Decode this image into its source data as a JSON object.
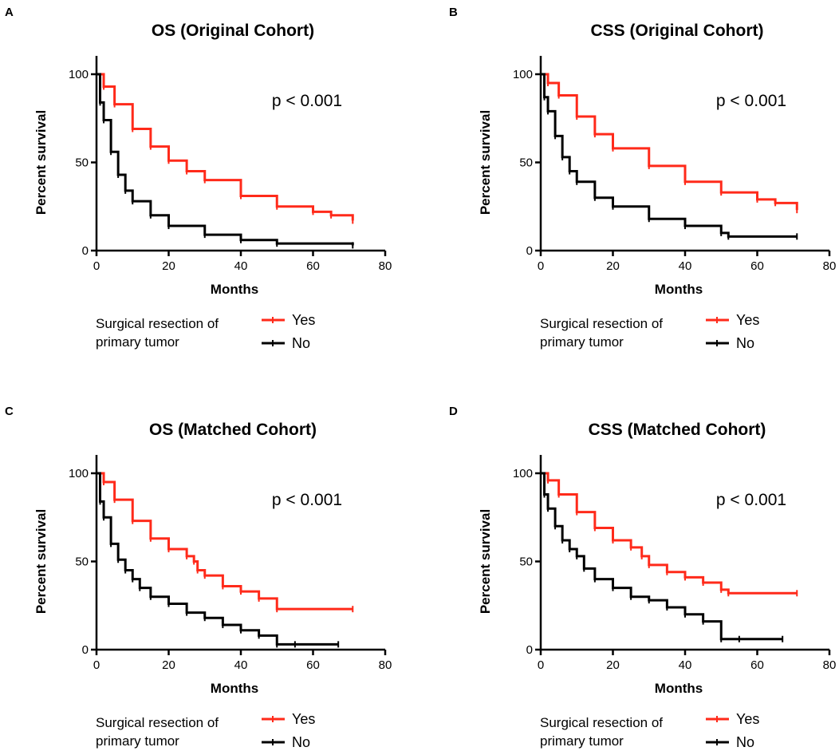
{
  "colors": {
    "yes": "#ff2a1a",
    "no": "#000000",
    "axis": "#000000"
  },
  "chart_data": [
    {
      "panel": "A",
      "type": "line",
      "subtype": "kaplan-meier",
      "title": "OS (Original Cohort)",
      "xlabel": "Months",
      "ylabel": "Percent survival",
      "xlim": [
        0,
        80
      ],
      "ylim": [
        0,
        100
      ],
      "xticks": [
        "0",
        "20",
        "40",
        "60",
        "80"
      ],
      "yticks": [
        "0",
        "50",
        "100"
      ],
      "annotation": "p < 0.001",
      "legend": {
        "title_line1": "Surgical resection of",
        "title_line2": "primary tumor",
        "yes_label": "Yes",
        "no_label": "No"
      },
      "series": [
        {
          "name": "Yes",
          "x": [
            0,
            2,
            5,
            10,
            15,
            20,
            25,
            30,
            40,
            50,
            60,
            65,
            71
          ],
          "y": [
            100,
            93,
            83,
            69,
            59,
            51,
            45,
            40,
            31,
            25,
            22,
            20,
            17
          ]
        },
        {
          "name": "No",
          "x": [
            0,
            1,
            2,
            4,
            6,
            8,
            10,
            15,
            20,
            30,
            40,
            50,
            71
          ],
          "y": [
            100,
            84,
            74,
            56,
            43,
            34,
            28,
            20,
            14,
            9,
            6,
            4,
            3
          ]
        }
      ]
    },
    {
      "panel": "B",
      "type": "line",
      "subtype": "kaplan-meier",
      "title": "CSS (Original Cohort)",
      "xlabel": "Months",
      "ylabel": "Percent survival",
      "xlim": [
        0,
        80
      ],
      "ylim": [
        0,
        100
      ],
      "xticks": [
        "0",
        "20",
        "40",
        "60",
        "80"
      ],
      "yticks": [
        "0",
        "50",
        "100"
      ],
      "annotation": "p < 0.001",
      "legend": {
        "title_line1": "Surgical resection of",
        "title_line2": "primary tumor",
        "yes_label": "Yes",
        "no_label": "No"
      },
      "series": [
        {
          "name": "Yes",
          "x": [
            0,
            2,
            5,
            10,
            15,
            20,
            30,
            40,
            50,
            60,
            65,
            71
          ],
          "y": [
            100,
            95,
            88,
            76,
            66,
            58,
            48,
            39,
            33,
            29,
            27,
            23
          ]
        },
        {
          "name": "No",
          "x": [
            0,
            1,
            2,
            4,
            6,
            8,
            10,
            15,
            20,
            30,
            40,
            50,
            52,
            71
          ],
          "y": [
            100,
            87,
            79,
            65,
            53,
            45,
            39,
            30,
            25,
            18,
            14,
            10,
            8,
            8
          ]
        }
      ]
    },
    {
      "panel": "C",
      "type": "line",
      "subtype": "kaplan-meier",
      "title": "OS (Matched Cohort)",
      "xlabel": "Months",
      "ylabel": "Percent survival",
      "xlim": [
        0,
        80
      ],
      "ylim": [
        0,
        100
      ],
      "xticks": [
        "0",
        "20",
        "40",
        "60",
        "80"
      ],
      "yticks": [
        "0",
        "50",
        "100"
      ],
      "annotation": "p < 0.001",
      "legend": {
        "title_line1": "Surgical resection of",
        "title_line2": "primary tumor",
        "yes_label": "Yes",
        "no_label": "No"
      },
      "series": [
        {
          "name": "Yes",
          "x": [
            0,
            2,
            5,
            10,
            15,
            20,
            25,
            27,
            28,
            30,
            35,
            40,
            45,
            50,
            71
          ],
          "y": [
            100,
            95,
            85,
            73,
            63,
            57,
            53,
            50,
            45,
            42,
            36,
            33,
            29,
            23,
            23
          ]
        },
        {
          "name": "No",
          "x": [
            0,
            1,
            2,
            4,
            6,
            8,
            10,
            12,
            15,
            20,
            25,
            30,
            35,
            40,
            45,
            50,
            55,
            67
          ],
          "y": [
            100,
            84,
            75,
            60,
            51,
            45,
            40,
            35,
            30,
            26,
            21,
            18,
            14,
            11,
            8,
            3,
            3,
            3
          ]
        }
      ]
    },
    {
      "panel": "D",
      "type": "line",
      "subtype": "kaplan-meier",
      "title": "CSS (Matched Cohort)",
      "xlabel": "Months",
      "ylabel": "Percent survival",
      "xlim": [
        0,
        80
      ],
      "ylim": [
        0,
        100
      ],
      "xticks": [
        "0",
        "20",
        "40",
        "60",
        "80"
      ],
      "yticks": [
        "0",
        "50",
        "100"
      ],
      "annotation": "p < 0.001",
      "legend": {
        "title_line1": "Surgical resection of",
        "title_line2": "primary tumor",
        "yes_label": "Yes",
        "no_label": "No"
      },
      "series": [
        {
          "name": "Yes",
          "x": [
            0,
            2,
            5,
            10,
            15,
            20,
            25,
            28,
            30,
            35,
            40,
            45,
            50,
            52,
            71
          ],
          "y": [
            100,
            96,
            88,
            78,
            69,
            62,
            58,
            53,
            48,
            44,
            41,
            38,
            34,
            32,
            32
          ]
        },
        {
          "name": "No",
          "x": [
            0,
            1,
            2,
            4,
            6,
            8,
            10,
            12,
            15,
            20,
            25,
            30,
            35,
            40,
            45,
            50,
            55,
            67
          ],
          "y": [
            100,
            88,
            80,
            70,
            62,
            57,
            53,
            46,
            40,
            35,
            30,
            28,
            24,
            20,
            16,
            6,
            6,
            6
          ]
        }
      ]
    }
  ]
}
